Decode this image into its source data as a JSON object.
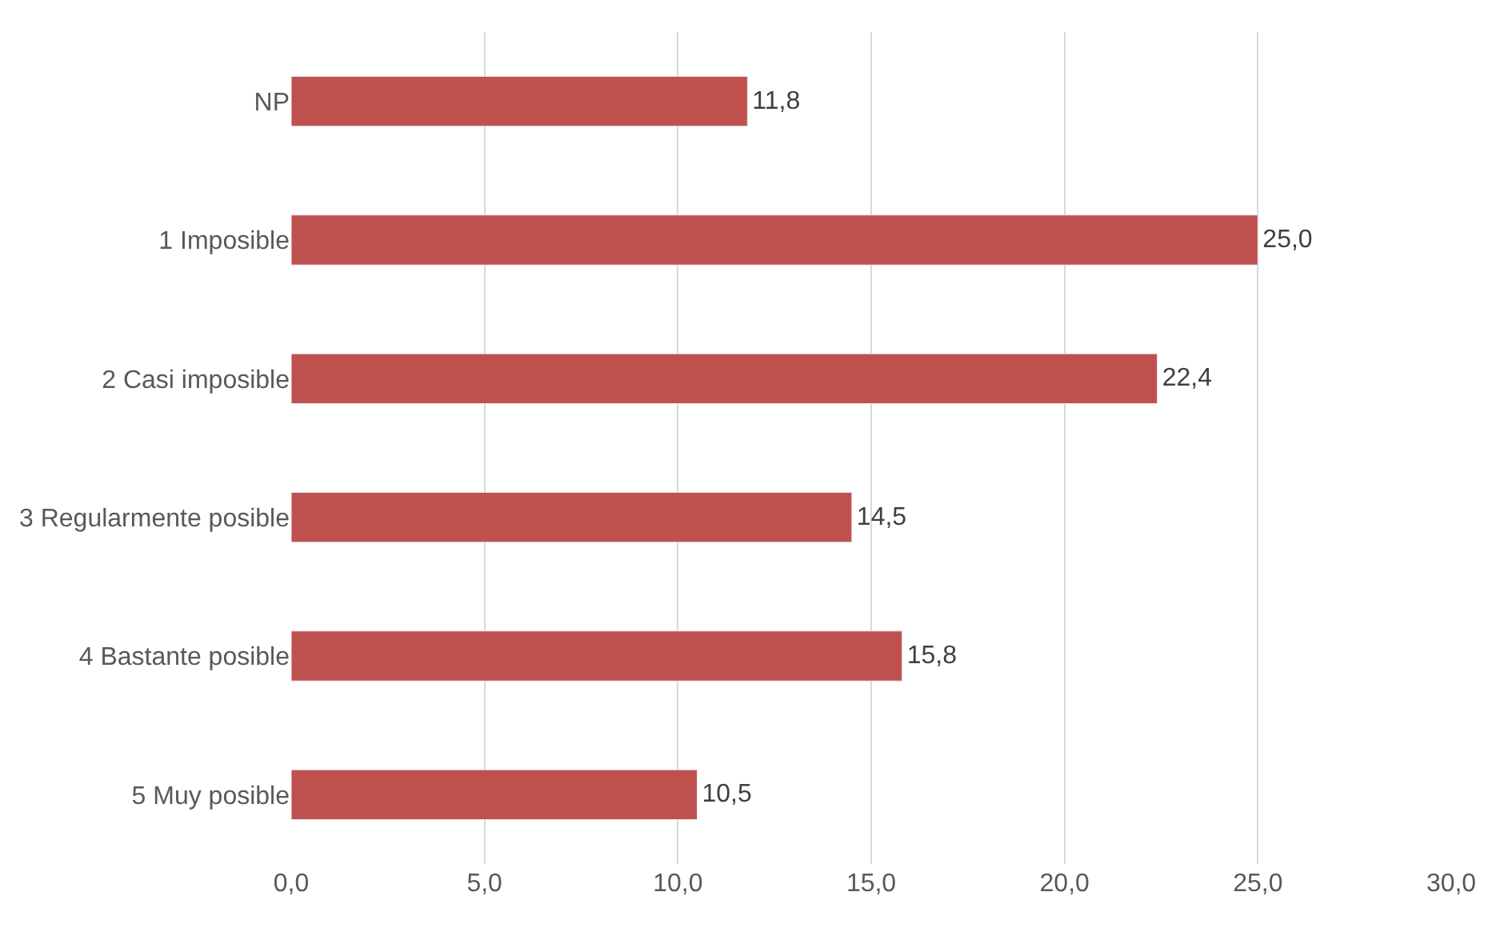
{
  "chart_data": {
    "type": "bar",
    "orientation": "horizontal",
    "categories": [
      "NP",
      "1 Imposible",
      "2 Casi imposible",
      "3 Regularmente posible",
      "4 Bastante posible",
      "5 Muy posible"
    ],
    "values": [
      11.8,
      25.0,
      22.4,
      14.5,
      15.8,
      10.5
    ],
    "value_labels": [
      "11,8",
      "25,0",
      "22,4",
      "14,5",
      "15,8",
      "10,5"
    ],
    "color": "#c0504d",
    "xlim": [
      0,
      30
    ],
    "xticks": [
      {
        "value": 0,
        "label": "0,0"
      },
      {
        "value": 5,
        "label": "5,0"
      },
      {
        "value": 10,
        "label": "10,0"
      },
      {
        "value": 15,
        "label": "15,0"
      },
      {
        "value": 20,
        "label": "20,0"
      },
      {
        "value": 25,
        "label": "25,0"
      },
      {
        "value": 30,
        "label": "30,0"
      }
    ],
    "grid": "x",
    "legend": false
  }
}
